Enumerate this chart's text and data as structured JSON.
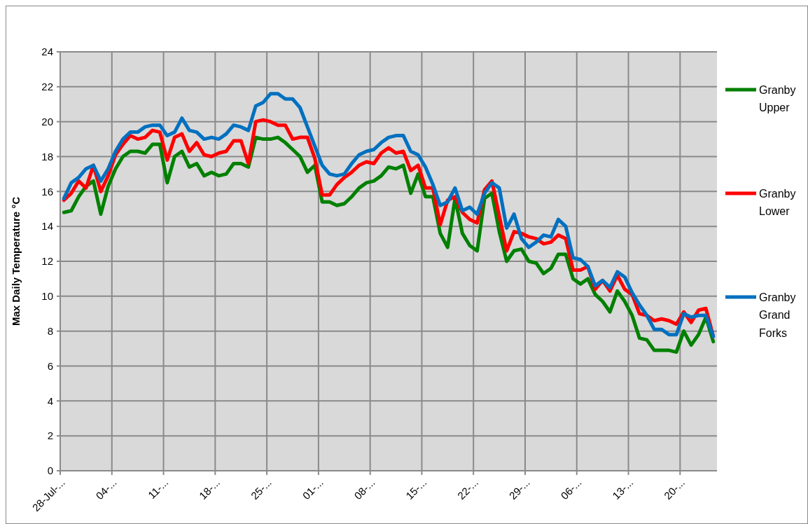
{
  "chart_data": {
    "type": "line",
    "ylabel": "Max Daily Temperature  °C",
    "categories": [
      "28-Jul-...",
      null,
      null,
      null,
      null,
      null,
      null,
      "04-...",
      null,
      null,
      null,
      null,
      null,
      null,
      "11-...",
      null,
      null,
      null,
      null,
      null,
      null,
      "18-...",
      null,
      null,
      null,
      null,
      null,
      null,
      "25-...",
      null,
      null,
      null,
      null,
      null,
      null,
      "01-...",
      null,
      null,
      null,
      null,
      null,
      null,
      "08-...",
      null,
      null,
      null,
      null,
      null,
      null,
      "15-...",
      null,
      null,
      null,
      null,
      null,
      null,
      "22-...",
      null,
      null,
      null,
      null,
      null,
      null,
      "29-...",
      null,
      null,
      null,
      null,
      null,
      null,
      "06-...",
      null,
      null,
      null,
      null,
      null,
      null,
      "13-...",
      null,
      null,
      null,
      null,
      null,
      null,
      "20-...",
      null,
      null,
      null,
      null
    ],
    "ylim": [
      0,
      24
    ],
    "yticks": [
      0,
      2,
      4,
      6,
      8,
      10,
      12,
      14,
      16,
      18,
      20,
      22,
      24
    ],
    "grid": true,
    "legend": "right",
    "marker": "none",
    "line_style": "solid",
    "series": [
      {
        "name": "Granby Upper",
        "color": "#008000",
        "values": [
          14.8,
          14.9,
          15.7,
          16.3,
          16.6,
          14.7,
          16.3,
          17.3,
          18.0,
          18.3,
          18.3,
          18.2,
          18.7,
          18.7,
          16.5,
          18.0,
          18.3,
          17.4,
          17.6,
          16.9,
          17.1,
          16.9,
          17.0,
          17.6,
          17.6,
          17.4,
          19.1,
          19.0,
          19.0,
          19.1,
          18.8,
          18.4,
          18.0,
          17.1,
          17.5,
          15.4,
          15.4,
          15.2,
          15.3,
          15.7,
          16.2,
          16.5,
          16.6,
          16.9,
          17.4,
          17.3,
          17.5,
          15.9,
          17.0,
          15.7,
          15.7,
          13.6,
          12.8,
          15.6,
          13.6,
          12.9,
          12.6,
          15.6,
          15.9,
          13.7,
          12.0,
          12.6,
          12.7,
          12.0,
          11.9,
          11.3,
          11.6,
          12.4,
          12.4,
          11.0,
          10.7,
          11.0,
          10.1,
          9.7,
          9.1,
          10.3,
          9.7,
          8.9,
          7.6,
          7.5,
          6.9,
          6.9,
          6.9,
          6.8,
          8.0,
          7.2,
          7.8,
          8.8,
          7.4
        ]
      },
      {
        "name": "Granby Lower",
        "color": "#ff0000",
        "values": [
          15.5,
          15.9,
          16.6,
          16.2,
          17.5,
          16.0,
          16.9,
          18.1,
          18.7,
          19.2,
          19.0,
          19.1,
          19.5,
          19.4,
          17.8,
          19.1,
          19.3,
          18.3,
          18.8,
          18.1,
          18.0,
          18.2,
          18.3,
          18.9,
          18.9,
          17.6,
          20.0,
          20.1,
          20.0,
          19.8,
          19.8,
          19.0,
          19.1,
          19.1,
          17.9,
          15.8,
          15.8,
          16.4,
          16.8,
          17.1,
          17.5,
          17.7,
          17.6,
          18.2,
          18.5,
          18.2,
          18.3,
          17.2,
          17.5,
          16.2,
          16.2,
          14.1,
          15.5,
          15.7,
          14.8,
          14.4,
          14.2,
          16.1,
          16.6,
          14.6,
          12.6,
          13.7,
          13.6,
          13.4,
          13.3,
          13.0,
          13.1,
          13.5,
          13.3,
          11.5,
          11.5,
          11.7,
          10.4,
          10.9,
          10.3,
          11.2,
          10.4,
          10.1,
          9.0,
          8.9,
          8.6,
          8.7,
          8.6,
          8.4,
          9.1,
          8.5,
          9.2,
          9.3,
          7.7
        ]
      },
      {
        "name": "Granby Grand Forks",
        "color": "#0070c0",
        "values": [
          15.6,
          16.5,
          16.8,
          17.3,
          17.5,
          16.6,
          17.3,
          18.3,
          19.0,
          19.4,
          19.4,
          19.7,
          19.8,
          19.8,
          19.2,
          19.4,
          20.2,
          19.5,
          19.4,
          19.0,
          19.1,
          19.0,
          19.3,
          19.8,
          19.7,
          19.5,
          20.9,
          21.1,
          21.6,
          21.6,
          21.3,
          21.3,
          20.8,
          19.7,
          18.6,
          17.5,
          17.0,
          16.9,
          17.0,
          17.6,
          18.1,
          18.3,
          18.4,
          18.8,
          19.1,
          19.2,
          19.2,
          18.3,
          18.1,
          17.4,
          16.4,
          15.2,
          15.4,
          16.2,
          14.9,
          15.1,
          14.7,
          15.9,
          16.5,
          16.2,
          13.9,
          14.7,
          13.3,
          12.8,
          13.1,
          13.5,
          13.4,
          14.4,
          14.0,
          12.2,
          12.1,
          11.7,
          10.6,
          10.9,
          10.5,
          11.4,
          11.1,
          10.2,
          9.5,
          8.9,
          8.1,
          8.1,
          7.8,
          7.8,
          9.0,
          8.8,
          8.9,
          8.9,
          7.7
        ]
      }
    ]
  }
}
